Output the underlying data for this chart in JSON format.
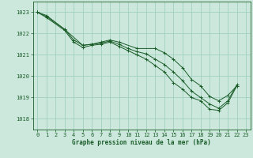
{
  "title": "Graphe pression niveau de la mer (hPa)",
  "bg_color": "#cce8dd",
  "grid_color": "#99ccbb",
  "line_color": "#1a5c28",
  "xlim": [
    -0.5,
    23.5
  ],
  "ylim": [
    1017.5,
    1023.5
  ],
  "yticks": [
    1018,
    1019,
    1020,
    1021,
    1022,
    1023
  ],
  "xticks": [
    0,
    1,
    2,
    3,
    4,
    5,
    6,
    7,
    8,
    9,
    10,
    11,
    12,
    13,
    14,
    15,
    16,
    17,
    18,
    19,
    20,
    21,
    22,
    23
  ],
  "series": [
    {
      "x": [
        0,
        1,
        3,
        5,
        6,
        7,
        8,
        9,
        11,
        13,
        14,
        15,
        16,
        17,
        18,
        19,
        20,
        21,
        22
      ],
      "y": [
        1023.0,
        1022.85,
        1022.2,
        1021.45,
        1021.5,
        1021.6,
        1021.7,
        1021.6,
        1021.3,
        1021.3,
        1021.1,
        1020.8,
        1020.4,
        1019.85,
        1019.55,
        1019.05,
        1018.85,
        1019.1,
        1019.55
      ]
    },
    {
      "x": [
        0,
        1,
        3,
        4,
        5,
        6,
        7,
        8,
        9,
        10,
        11,
        12,
        13,
        14,
        15,
        16,
        17,
        18,
        19,
        20,
        21,
        22
      ],
      "y": [
        1023.0,
        1022.8,
        1022.2,
        1021.7,
        1021.45,
        1021.5,
        1021.55,
        1021.65,
        1021.5,
        1021.3,
        1021.15,
        1021.05,
        1020.8,
        1020.55,
        1020.2,
        1019.8,
        1019.3,
        1019.0,
        1018.7,
        1018.5,
        1018.85,
        1019.6
      ]
    },
    {
      "x": [
        0,
        1,
        3,
        4,
        5,
        6,
        7,
        8,
        9,
        10,
        11,
        12,
        13,
        14,
        15,
        16,
        17,
        18,
        19,
        20,
        21,
        22
      ],
      "y": [
        1023.0,
        1022.75,
        1022.15,
        1021.6,
        1021.35,
        1021.45,
        1021.5,
        1021.6,
        1021.4,
        1021.2,
        1021.0,
        1020.8,
        1020.5,
        1020.2,
        1019.7,
        1019.4,
        1019.0,
        1018.85,
        1018.45,
        1018.4,
        1018.75,
        1019.55
      ]
    }
  ]
}
